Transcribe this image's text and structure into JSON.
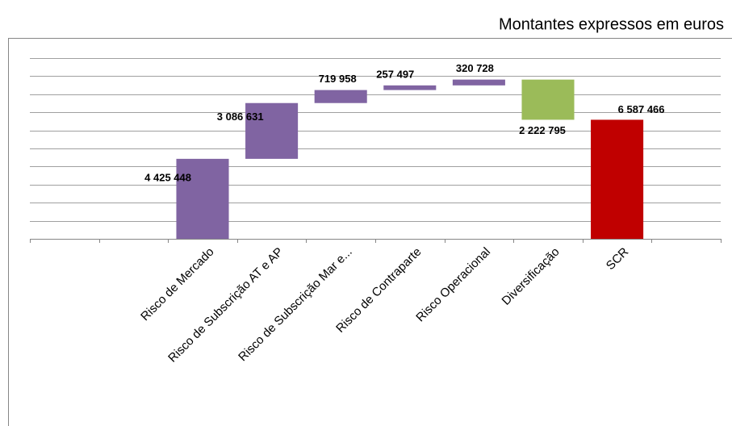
{
  "chart_data": {
    "type": "waterfall",
    "subtitle": "Montantes expressos em euros",
    "categories": [
      null,
      null,
      "Risco de Mercado",
      "Risco de Subscrição AT e AP",
      "Risco de Subscrição Mar e...",
      "Risco de Contraparte",
      "Risco Operacional",
      "Diversificação",
      "SCR",
      null
    ],
    "values": [
      null,
      null,
      4425448,
      3086631,
      719958,
      257497,
      320728,
      -2222795,
      6587466,
      null
    ],
    "value_labels": [
      null,
      null,
      "4 425 448",
      "3 086 631",
      "719 958",
      "257 497",
      "320 728",
      "2 222 795",
      "6 587 466",
      null
    ],
    "is_total": [
      false,
      false,
      false,
      false,
      false,
      false,
      false,
      false,
      true,
      false
    ],
    "colors": [
      null,
      null,
      "#8064a2",
      "#8064a2",
      "#8064a2",
      "#8064a2",
      "#8064a2",
      "#9bbb59",
      "#c00000",
      null
    ],
    "ylim": [
      0,
      10000000
    ],
    "yticks": [
      0,
      1000000,
      2000000,
      3000000,
      4000000,
      5000000,
      6000000,
      7000000,
      8000000,
      9000000,
      10000000
    ],
    "grid": true
  }
}
